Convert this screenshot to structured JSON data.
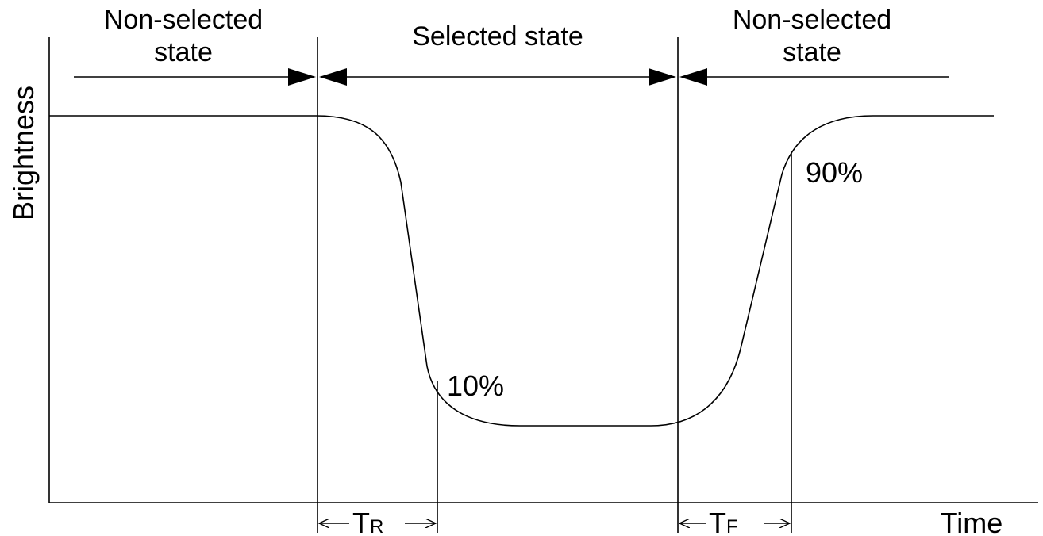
{
  "labels": {
    "non_selected_left_line1": "Non-selected",
    "non_selected_left_line2": "state",
    "selected": "Selected state",
    "non_selected_right_line1": "Non-selected",
    "non_selected_right_line2": "state",
    "y_axis": "Brightness",
    "x_axis": "Time",
    "pct_10": "10%",
    "pct_90": "90%",
    "tr_main": "T",
    "tr_sub": "R",
    "tf_main": "T",
    "tf_sub": "F"
  }
}
